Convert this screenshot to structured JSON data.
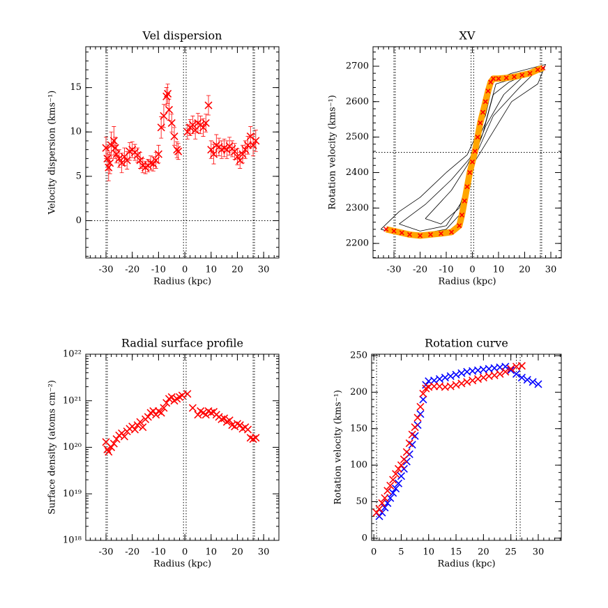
{
  "chart_data": [
    {
      "type": "scatter",
      "title": "Vel dispersion",
      "x_label": "Radius (kpc)",
      "y_label": "Velocity dispersion (kms⁻¹)",
      "xlim": [
        -37.7,
        35.8
      ],
      "ylim": [
        -4.2,
        19.6
      ],
      "xticks": [
        -30,
        -20,
        -10,
        0,
        10,
        20,
        30
      ],
      "yticks": [
        0,
        5,
        10,
        15
      ],
      "vlines": [
        -30,
        -29.5,
        -0.5,
        0.5,
        26,
        26.5
      ],
      "hlines": [
        0
      ],
      "series": [
        {
          "color": "#ff0000",
          "marker": "x",
          "x": [
            -30,
            -29.5,
            -29,
            -28.5,
            -28,
            -27,
            -26.5,
            -26,
            -25,
            -24,
            -23,
            -22,
            -21,
            -20,
            -19,
            -18,
            -17,
            -16,
            -15,
            -14,
            -13,
            -12,
            -11,
            -10,
            -9,
            -8,
            -7,
            -6.5,
            -6,
            -5,
            -4,
            -3,
            -2.5,
            1,
            2,
            3,
            4,
            5,
            6,
            7,
            8,
            9,
            10,
            11,
            12,
            13,
            14,
            15,
            16,
            17,
            18,
            19,
            20,
            21,
            22,
            23,
            24,
            25,
            26,
            27
          ],
          "values": [
            8.2,
            7,
            6,
            6.5,
            8.5,
            9,
            8.2,
            7.5,
            7,
            6.5,
            7.2,
            6.8,
            7.8,
            8,
            7.7,
            7.4,
            6.8,
            6.2,
            6,
            6.2,
            6.5,
            6.4,
            6.8,
            7.5,
            10.5,
            11.8,
            14,
            14.3,
            12.5,
            11,
            9.5,
            8,
            7.8,
            10,
            10.5,
            10.8,
            10.2,
            11,
            10.8,
            10.5,
            11,
            13,
            8,
            7.5,
            8.5,
            8.3,
            8,
            8.2,
            8,
            8.4,
            8.1,
            7.8,
            7.2,
            6.8,
            7.5,
            8,
            8.5,
            9.5,
            8.5,
            9
          ],
          "errors": [
            1.2,
            1.3,
            1.5,
            1.2,
            1.5,
            1.6,
            1.2,
            1.0,
            1.0,
            1.1,
            1.0,
            1.0,
            1.0,
            0.9,
            0.9,
            0.8,
            0.9,
            0.8,
            0.7,
            0.7,
            0.8,
            0.8,
            0.9,
            1.0,
            1.2,
            1.3,
            1.0,
            1.1,
            1.2,
            1.0,
            1.0,
            0.9,
            0.9,
            0.8,
            0.9,
            1.0,
            1.0,
            1.1,
            1.0,
            1.0,
            1.0,
            1.1,
            1.0,
            1.1,
            1.2,
            1.0,
            1.0,
            1.0,
            1.0,
            1.0,
            0.9,
            0.9,
            0.9,
            0.9,
            1.0,
            1.0,
            1.0,
            1.1,
            1.2,
            1.2
          ]
        }
      ]
    },
    {
      "type": "contour",
      "title": "XV",
      "x_label": "Radius (kpc)",
      "y_label": "Rotation velocity (kms⁻¹)",
      "xlim": [
        -38,
        34
      ],
      "ylim": [
        2159,
        2755
      ],
      "xticks": [
        -30,
        -20,
        -10,
        0,
        10,
        20,
        30
      ],
      "yticks": [
        2200,
        2300,
        2400,
        2500,
        2600,
        2700
      ],
      "vlines": [
        -30,
        -29.5,
        -0.5,
        0.5,
        26,
        26.5
      ],
      "hlines": [
        2457
      ],
      "contours": [
        {
          "x": [
            -35,
            -28,
            -20,
            -10,
            -2,
            5,
            8,
            15,
            28,
            25,
            15,
            5,
            0,
            -5,
            -10,
            -25,
            -35
          ],
          "values": [
            2240,
            2290,
            2330,
            2400,
            2450,
            2560,
            2660,
            2680,
            2705,
            2650,
            2600,
            2480,
            2420,
            2280,
            2240,
            2220,
            2240
          ]
        },
        {
          "x": [
            -28,
            -18,
            -8,
            -1,
            5,
            9,
            18,
            25,
            18,
            8,
            2,
            -3,
            -10,
            -20,
            -28
          ],
          "values": [
            2255,
            2310,
            2380,
            2440,
            2540,
            2650,
            2670,
            2690,
            2640,
            2560,
            2460,
            2330,
            2250,
            2235,
            2255
          ]
        },
        {
          "x": [
            -18,
            -8,
            -2,
            4,
            8,
            14,
            20,
            12,
            5,
            0,
            -5,
            -12,
            -18
          ],
          "values": [
            2270,
            2350,
            2420,
            2510,
            2620,
            2655,
            2675,
            2620,
            2530,
            2430,
            2300,
            2255,
            2270
          ]
        }
      ],
      "series": [
        {
          "color": "#ff0000",
          "line_color": "#ffa500",
          "marker": "x",
          "x": [
            -33,
            -30,
            -27,
            -24,
            -20,
            -16,
            -12,
            -8,
            -5,
            -4,
            -3,
            -2,
            -1,
            0,
            1,
            2,
            3,
            4,
            5,
            6,
            7,
            8,
            10,
            13,
            16,
            19,
            22,
            25,
            27
          ],
          "values": [
            2240,
            2235,
            2230,
            2225,
            2222,
            2225,
            2228,
            2232,
            2250,
            2280,
            2320,
            2360,
            2400,
            2430,
            2460,
            2500,
            2540,
            2570,
            2600,
            2630,
            2655,
            2665,
            2665,
            2667,
            2670,
            2675,
            2680,
            2690,
            2695
          ]
        }
      ]
    },
    {
      "type": "scatter",
      "title": "Radial surface profile",
      "x_label": "Radius (kpc)",
      "y_label": "Surface density (atoms cm⁻²)",
      "log_y": true,
      "xlim": [
        -37.7,
        35.8
      ],
      "ylim": [
        1e+18,
        1e+22
      ],
      "xticks": [
        -30,
        -20,
        -10,
        0,
        10,
        20,
        30
      ],
      "yticks": [
        {
          "value": 1e+18,
          "label": "10¹⁸"
        },
        {
          "value": 1e+19,
          "label": "10¹⁹"
        },
        {
          "value": 1e+20,
          "label": "10²⁰"
        },
        {
          "value": 1e+21,
          "label": "10²¹"
        },
        {
          "value": 1e+22,
          "label": "10²²"
        }
      ],
      "vlines": [
        -30,
        -29.5,
        -0.5,
        0.5,
        26,
        26.5
      ],
      "hlines": [],
      "series": [
        {
          "color": "#ff0000",
          "marker": "x",
          "x": [
            -30,
            -29.5,
            -29,
            -28,
            -27,
            -26,
            -25,
            -24,
            -23,
            -22,
            -21,
            -20,
            -19,
            -18,
            -17,
            -16,
            -15,
            -14,
            -13,
            -12,
            -11,
            -10,
            -9,
            -8,
            -7,
            -6,
            -5,
            -4,
            -3,
            -2,
            -1,
            1,
            3,
            5,
            6,
            7,
            8,
            9,
            10,
            11,
            12,
            13,
            14,
            15,
            16,
            17,
            18,
            19,
            20,
            21,
            22,
            23,
            24,
            25,
            26,
            27
          ],
          "values": [
            1.3e+20,
            9e+19,
            8e+19,
            1e+20,
            1.2e+20,
            1.5e+20,
            1.8e+20,
            2e+20,
            1.7e+20,
            2.2e+20,
            2.5e+20,
            2.8e+20,
            2.4e+20,
            3e+20,
            3.5e+20,
            2.7e+20,
            4e+20,
            4.5e+20,
            5.5e+20,
            6e+20,
            5e+20,
            6e+20,
            5.5e+20,
            7e+20,
            9e+20,
            1.1e+21,
            1.2e+21,
            1e+21,
            1.1e+21,
            1.2e+21,
            1.3e+21,
            1.4e+21,
            7e+20,
            5e+20,
            6e+20,
            5.5e+20,
            5e+20,
            6e+20,
            5.5e+20,
            5.8e+20,
            5e+20,
            4.5e+20,
            4e+20,
            4.2e+20,
            3.5e+20,
            3.8e+20,
            3e+20,
            2.8e+20,
            3.2e+20,
            3e+20,
            2.5e+20,
            2.7e+20,
            2.4e+20,
            1.6e+20,
            1.5e+20,
            1.6e+20
          ]
        }
      ]
    },
    {
      "type": "scatter",
      "title": "Rotation curve",
      "x_label": "Radius (kpc)",
      "y_label": "Rotation velocity (kms⁻¹)",
      "xlim": [
        -0.4,
        34.2
      ],
      "ylim": [
        -3,
        252
      ],
      "xticks": [
        0,
        5,
        10,
        15,
        20,
        25,
        30
      ],
      "yticks": [
        0,
        50,
        100,
        150,
        200,
        250
      ],
      "vlines": [
        0.5,
        26,
        26.7
      ],
      "hlines": [],
      "series": [
        {
          "color": "#0000ff",
          "marker": "x",
          "x": [
            1,
            1.5,
            2,
            2.5,
            3,
            3.5,
            4,
            4.5,
            5,
            5.5,
            6,
            6.5,
            7,
            7.5,
            8,
            8.5,
            9,
            9.5,
            10,
            11,
            12,
            13,
            14,
            15,
            16,
            17,
            18,
            19,
            20,
            21,
            22,
            23,
            24,
            25,
            26,
            27,
            28,
            29,
            30
          ],
          "values": [
            30,
            35,
            42,
            48,
            55,
            62,
            68,
            75,
            85,
            95,
            105,
            115,
            128,
            140,
            155,
            170,
            190,
            210,
            215,
            216,
            218,
            220,
            222,
            224,
            226,
            228,
            229,
            230,
            231,
            232,
            233,
            234,
            235,
            230,
            225,
            220,
            217,
            214,
            211
          ]
        },
        {
          "color": "#ff0000",
          "marker": "x",
          "x": [
            0.5,
            1,
            1.5,
            2,
            2.5,
            3,
            3.5,
            4,
            4.5,
            5,
            5.5,
            6,
            6.5,
            7,
            7.5,
            8,
            8.5,
            9,
            9.5,
            10,
            11,
            12,
            13,
            14,
            15,
            16,
            17,
            18,
            19,
            20,
            21,
            22,
            23,
            24,
            25,
            26,
            27
          ],
          "values": [
            35,
            40,
            48,
            55,
            65,
            72,
            80,
            88,
            95,
            100,
            108,
            118,
            130,
            142,
            152,
            165,
            180,
            198,
            205,
            207,
            208,
            208,
            207,
            208,
            210,
            212,
            214,
            216,
            218,
            220,
            222,
            223,
            225,
            228,
            232,
            235,
            236
          ]
        }
      ]
    }
  ]
}
